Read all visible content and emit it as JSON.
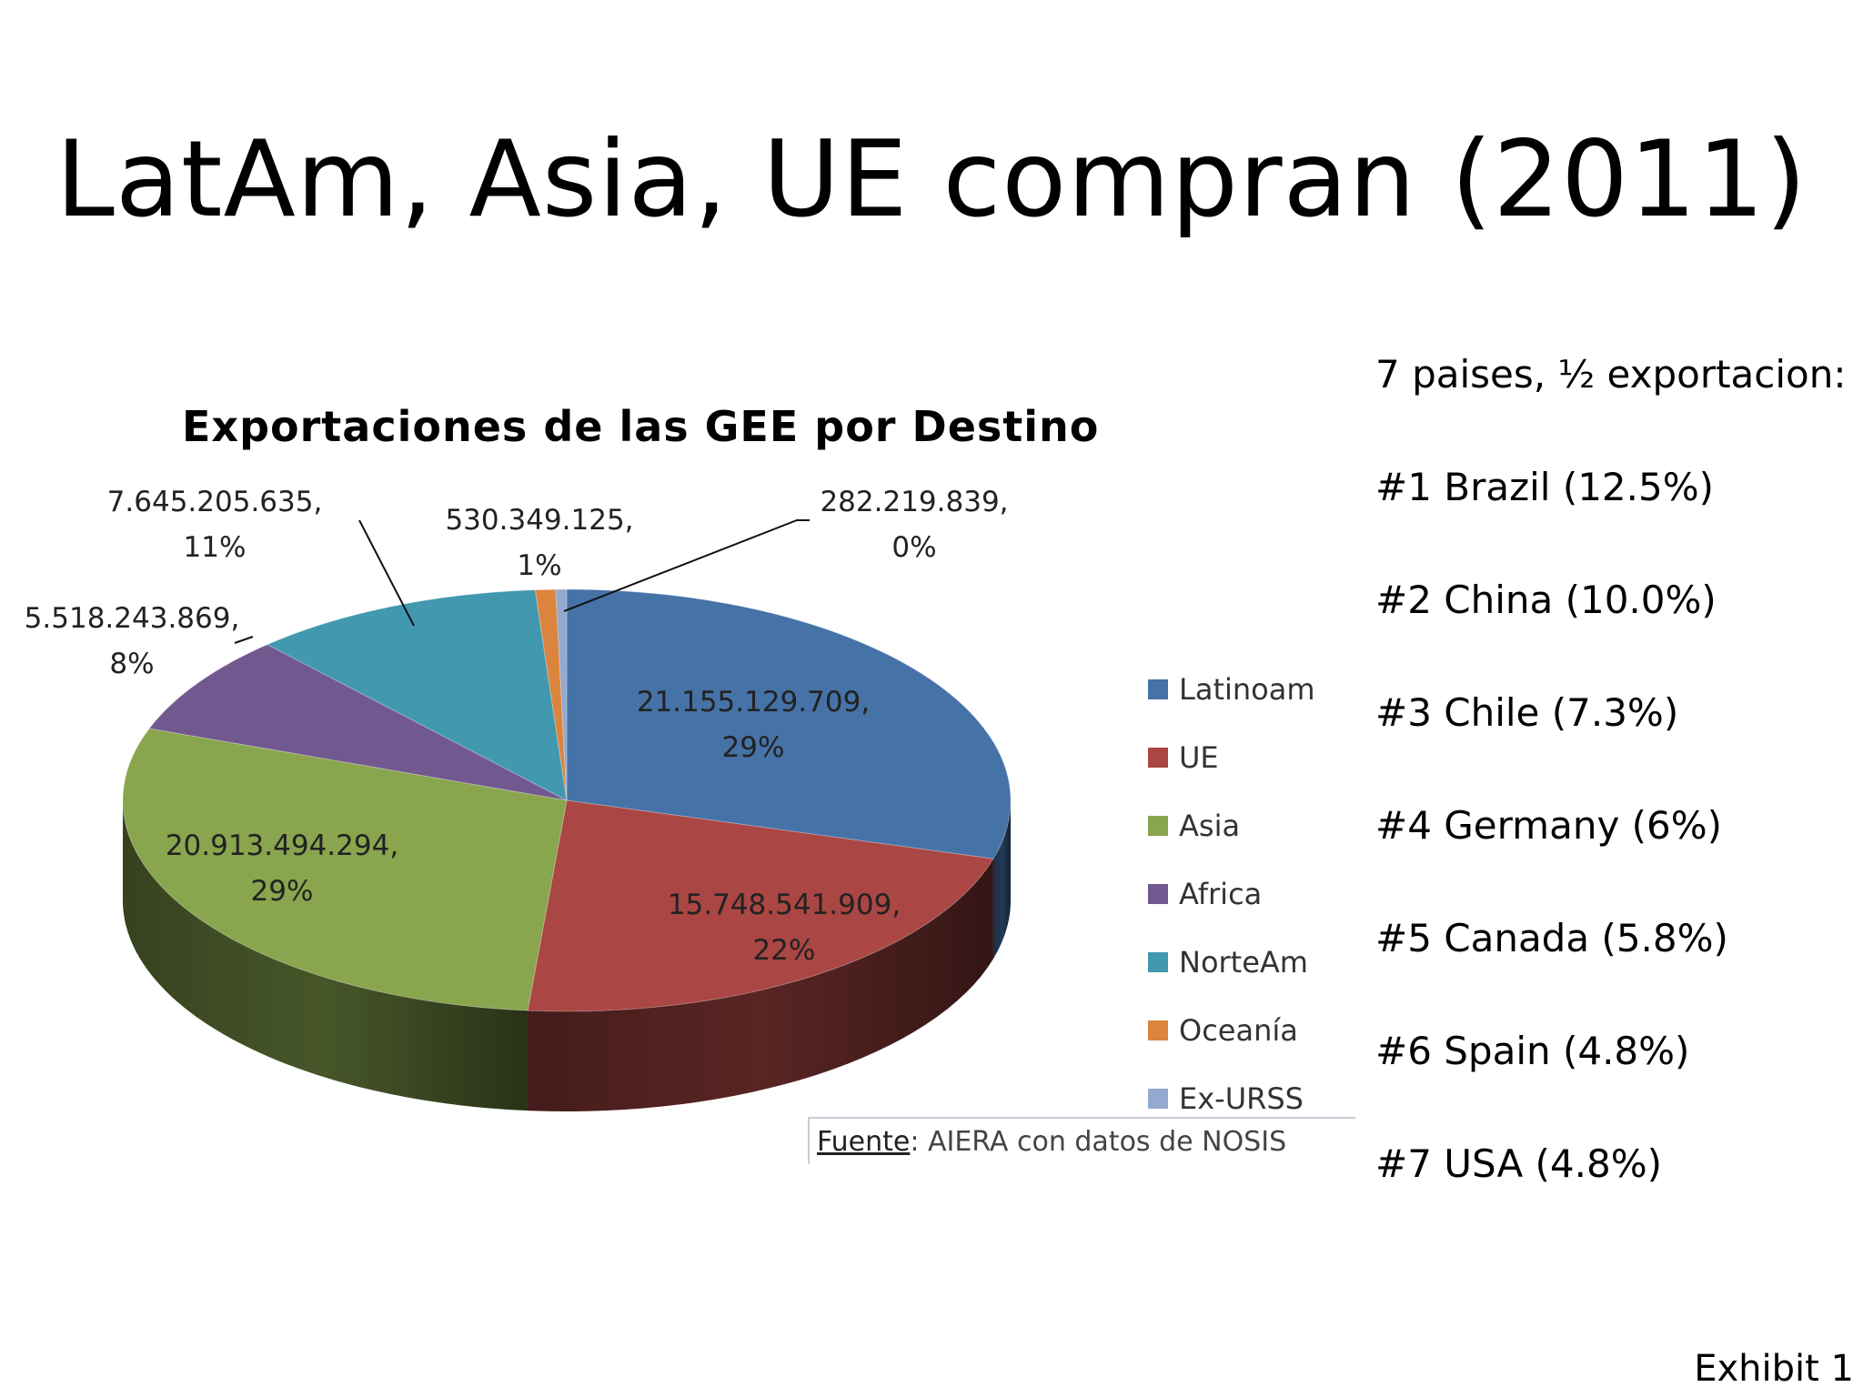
{
  "slide": {
    "title": "LatAm, Asia, UE compran (2011)",
    "footer": "Exhibit 1"
  },
  "side_list": {
    "heading": "7 paises, ½ exportacion:",
    "items": [
      "#1 Brazil (12.5%)",
      "#2 China (10.0%)",
      "#3 Chile (7.3%)",
      "#4 Germany (6%)",
      "#5 Canada (5.8%)",
      "#6 Spain (4.8%)",
      "#7 USA (4.8%)"
    ]
  },
  "source": {
    "key": "Fuente",
    "text": ": AIERA con datos de NOSIS"
  },
  "chart_data": {
    "type": "pie",
    "title": "Exportaciones de las GEE por Destino",
    "style": "3d",
    "legend_position": "right",
    "slices": [
      {
        "name": "Latinoam",
        "value": 21155129709,
        "value_label": "21.155.129.709,",
        "pct_label": "29%",
        "color": "#4572a7"
      },
      {
        "name": "UE",
        "value": 15748541909,
        "value_label": "15.748.541.909,",
        "pct_label": "22%",
        "color": "#aa4643"
      },
      {
        "name": "Asia",
        "value": 20913494294,
        "value_label": "20.913.494.294,",
        "pct_label": "29%",
        "color": "#89a54e"
      },
      {
        "name": "Africa",
        "value": 5518243869,
        "value_label": "5.518.243.869,",
        "pct_label": "8%",
        "color": "#71588f"
      },
      {
        "name": "NorteAm",
        "value": 7645205635,
        "value_label": "7.645.205.635,",
        "pct_label": "11%",
        "color": "#4198af"
      },
      {
        "name": "Oceanía",
        "value": 530349125,
        "value_label": "530.349.125,",
        "pct_label": "1%",
        "color": "#db843d"
      },
      {
        "name": "Ex-URSS",
        "value": 282219839,
        "value_label": "282.219.839,",
        "pct_label": "0%",
        "color": "#93a9cf"
      }
    ]
  }
}
